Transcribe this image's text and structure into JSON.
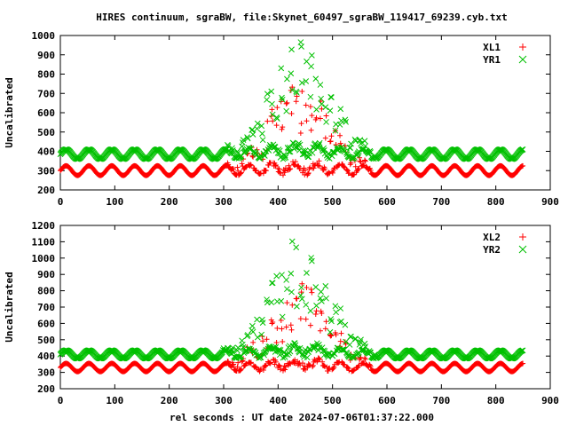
{
  "title": "HIRES continuum, sgraBW, file:Skynet_60497_sgraBW_119417_69239.cyb.txt",
  "xlabel": "rel seconds : UT date 2024-07-06T01:37:22.000",
  "colors": {
    "red": "#ff0000",
    "green": "#00c000",
    "axis": "#000000"
  },
  "chart_data": [
    {
      "type": "scatter",
      "ylabel": "Uncalibrated",
      "xlim": [
        0,
        900
      ],
      "ylim": [
        200,
        1000
      ],
      "xticks": [
        "0",
        "100",
        "200",
        "300",
        "400",
        "500",
        "600",
        "700",
        "800",
        "900"
      ],
      "yticks": [
        "200",
        "300",
        "400",
        "500",
        "600",
        "700",
        "800",
        "900",
        "1000"
      ],
      "legend_position": "top-right",
      "series": [
        {
          "name": "XL1",
          "marker": "plus",
          "color": "#ff0000",
          "baseline": 300,
          "ripple_amplitude": 25,
          "ripple_period_s": 42,
          "peak": 770,
          "peak_time_s": 440,
          "peak_width_s": 75,
          "x_range": [
            0,
            850
          ]
        },
        {
          "name": "YR1",
          "marker": "cross",
          "color": "#00c000",
          "baseline": 385,
          "ripple_amplitude": 25,
          "ripple_period_s": 42,
          "peak": 990,
          "peak_time_s": 440,
          "peak_width_s": 75,
          "x_range": [
            0,
            850
          ]
        }
      ]
    },
    {
      "type": "scatter",
      "ylabel": "Uncalibrated",
      "xlim": [
        0,
        900
      ],
      "ylim": [
        200,
        1200
      ],
      "xticks": [
        "0",
        "100",
        "200",
        "300",
        "400",
        "500",
        "600",
        "700",
        "800",
        "900"
      ],
      "yticks": [
        "200",
        "300",
        "400",
        "500",
        "600",
        "700",
        "800",
        "900",
        "1000",
        "1100",
        "1200"
      ],
      "legend_position": "top-right",
      "series": [
        {
          "name": "XL2",
          "marker": "plus",
          "color": "#ff0000",
          "baseline": 330,
          "ripple_amplitude": 25,
          "ripple_period_s": 42,
          "peak": 880,
          "peak_time_s": 440,
          "peak_width_s": 75,
          "x_range": [
            0,
            850
          ]
        },
        {
          "name": "YR2",
          "marker": "cross",
          "color": "#00c000",
          "baseline": 410,
          "ripple_amplitude": 25,
          "ripple_period_s": 42,
          "peak": 1120,
          "peak_time_s": 440,
          "peak_width_s": 75,
          "x_range": [
            0,
            850
          ]
        }
      ]
    }
  ]
}
